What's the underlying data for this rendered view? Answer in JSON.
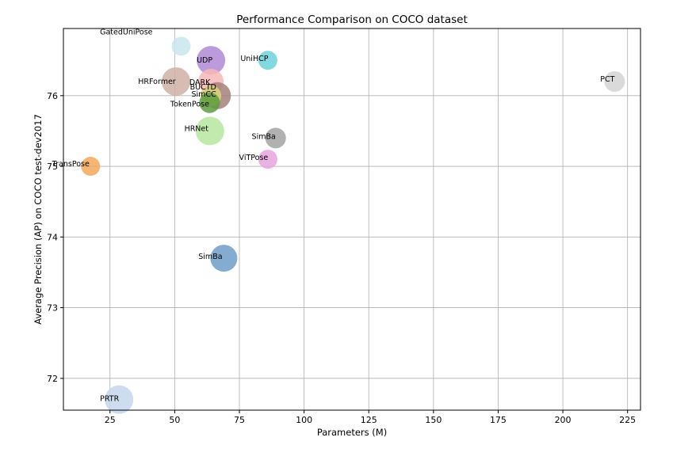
{
  "chart_data": {
    "type": "scatter",
    "title": "Performance Comparison on COCO dataset",
    "xlabel": "Parameters (M)",
    "ylabel": "Average Precision (AP) on COCO test-dev2017",
    "xlim": [
      7,
      230
    ],
    "ylim": [
      71.55,
      76.95
    ],
    "xticks": [
      25,
      50,
      75,
      100,
      125,
      150,
      175,
      200,
      225
    ],
    "yticks": [
      72,
      73,
      74,
      75,
      76
    ],
    "grid": true,
    "legend": "none",
    "points": [
      {
        "label": "GatedUniPose",
        "x": 52.5,
        "y": 76.7,
        "color": "#c9e6ec"
      },
      {
        "label": "UDP",
        "x": 64,
        "y": 76.5,
        "color": "#b08ad6"
      },
      {
        "label": "UniHCP",
        "x": 86,
        "y": 76.5,
        "color": "#6fd2dc"
      },
      {
        "label": "PCT",
        "x": 220,
        "y": 76.2,
        "color": "#d4d4d4"
      },
      {
        "label": "DARK",
        "x": 64,
        "y": 76.2,
        "color": "#f7b7b7"
      },
      {
        "label": "HRFormer",
        "x": 50.5,
        "y": 76.2,
        "color": "#cfb0a6"
      },
      {
        "label": "BUCTD",
        "x": 66.5,
        "y": 76.0,
        "color": "#a5817a"
      },
      {
        "label": "SimCC",
        "x": 64,
        "y": 76.0,
        "color": "#dcd37a"
      },
      {
        "label": "TokenPose",
        "x": 63.5,
        "y": 75.9,
        "color": "#5e9c3e"
      },
      {
        "label": "HRNet",
        "x": 63.6,
        "y": 75.5,
        "color": "#b9e6a0"
      },
      {
        "label": "SimBa",
        "x": 89,
        "y": 75.4,
        "color": "#a3a3a3"
      },
      {
        "label": "ViTPose",
        "x": 86,
        "y": 75.1,
        "color": "#e5a5de"
      },
      {
        "label": "TransPose",
        "x": 17.5,
        "y": 75.0,
        "color": "#f5a85a"
      },
      {
        "label": "SimBa",
        "x": 69,
        "y": 73.7,
        "color": "#6f9cc8"
      },
      {
        "label": "PRTR",
        "x": 28.5,
        "y": 71.7,
        "color": "#c5d6ec"
      }
    ]
  }
}
